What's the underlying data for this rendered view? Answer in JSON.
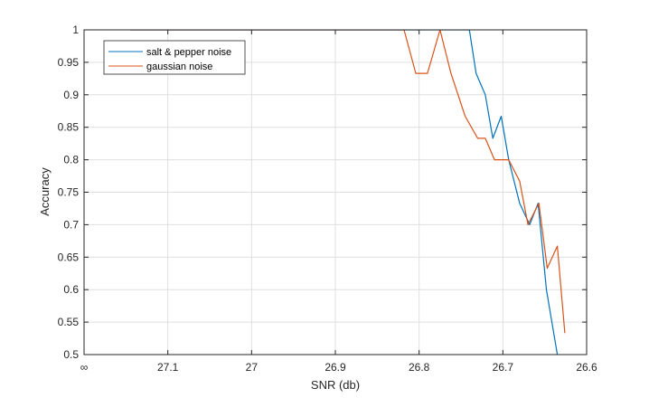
{
  "chart_data": {
    "type": "line",
    "title": "",
    "xlabel": "SNR (db)",
    "ylabel": "Accuracy",
    "x_direction": "reversed",
    "xlim": [
      27.2,
      26.6
    ],
    "ylim": [
      0.5,
      1.0
    ],
    "x_ticks": [
      {
        "value": 27.2,
        "label": "∞"
      },
      {
        "value": 27.1,
        "label": "27.1"
      },
      {
        "value": 27.0,
        "label": "27"
      },
      {
        "value": 26.9,
        "label": "26.9"
      },
      {
        "value": 26.8,
        "label": "26.8"
      },
      {
        "value": 26.7,
        "label": "26.7"
      },
      {
        "value": 26.6,
        "label": "26.6"
      }
    ],
    "y_ticks": [
      {
        "value": 1.0,
        "label": "1"
      },
      {
        "value": 0.95,
        "label": "0.95"
      },
      {
        "value": 0.9,
        "label": "0.9"
      },
      {
        "value": 0.85,
        "label": "0.85"
      },
      {
        "value": 0.8,
        "label": "0.8"
      },
      {
        "value": 0.75,
        "label": "0.75"
      },
      {
        "value": 0.7,
        "label": "0.7"
      },
      {
        "value": 0.65,
        "label": "0.65"
      },
      {
        "value": 0.6,
        "label": "0.6"
      },
      {
        "value": 0.55,
        "label": "0.55"
      },
      {
        "value": 0.5,
        "label": "0.5"
      }
    ],
    "grid": true,
    "legend_position": "top-left",
    "series": [
      {
        "name": "salt & pepper noise",
        "color": "#0072BD",
        "x": [
          27.145,
          26.82,
          26.775,
          26.74,
          26.732,
          26.721,
          26.712,
          26.702,
          26.693,
          26.68,
          26.668,
          26.658,
          26.648,
          26.635
        ],
        "y": [
          1.0,
          1.0,
          1.0,
          1.0,
          0.933,
          0.9,
          0.833,
          0.867,
          0.8,
          0.733,
          0.7,
          0.733,
          0.6,
          0.5
        ]
      },
      {
        "name": "gaussian noise",
        "color": "#D95319",
        "x": [
          27.145,
          26.818,
          26.804,
          26.79,
          26.775,
          26.762,
          26.745,
          26.73,
          26.721,
          26.71,
          26.693,
          26.68,
          26.67,
          26.657,
          26.647,
          26.635,
          26.626
        ],
        "y": [
          1.0,
          1.0,
          0.933,
          0.933,
          1.0,
          0.933,
          0.867,
          0.833,
          0.833,
          0.8,
          0.8,
          0.767,
          0.7,
          0.733,
          0.633,
          0.667,
          0.533
        ]
      }
    ]
  }
}
